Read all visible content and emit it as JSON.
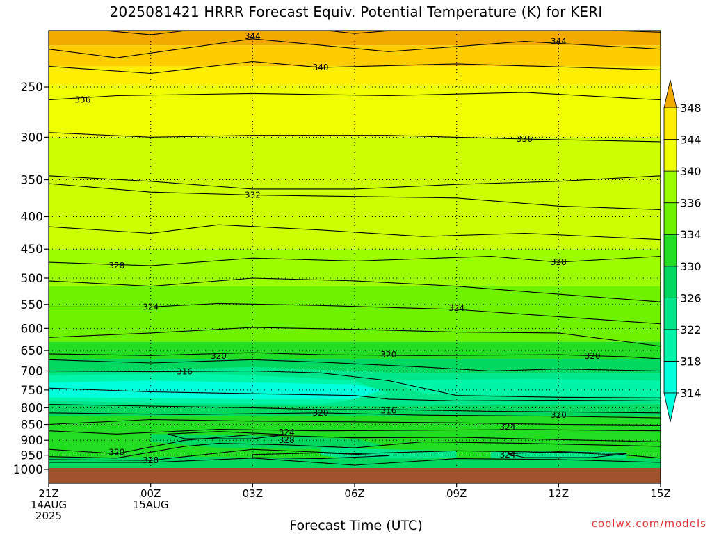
{
  "title": "2025081421 HRRR Forecast Equiv. Potential Temperature (K) for KERI",
  "credit": "coolwx.com/models",
  "colors": {
    "ground": "#a0522d",
    "band_colors": [
      "#00ffdd",
      "#00f5a8",
      "#00e68a",
      "#00d860",
      "#22dd22",
      "#6ef200",
      "#9cff00",
      "#ccff00",
      "#f0ff00",
      "#ffee00",
      "#ffcc00",
      "#f2aa00"
    ]
  },
  "chart_data": {
    "type": "contour",
    "title": "2025081421 HRRR Forecast Equiv. Potential Temperature (K) for KERI",
    "xlabel": "Forecast Time (UTC)",
    "ylabel": "",
    "y_scale": "log",
    "y_reversed": true,
    "y_ticks": [
      250,
      300,
      350,
      400,
      450,
      500,
      550,
      600,
      650,
      700,
      750,
      800,
      850,
      900,
      950,
      1000
    ],
    "x_ticks": [
      {
        "hours": 0,
        "lines": [
          "21Z",
          "14AUG",
          "2025"
        ]
      },
      {
        "hours": 3,
        "lines": [
          "00Z",
          "15AUG"
        ]
      },
      {
        "hours": 6,
        "lines": [
          "03Z"
        ]
      },
      {
        "hours": 9,
        "lines": [
          "06Z"
        ]
      },
      {
        "hours": 12,
        "lines": [
          "09Z"
        ]
      },
      {
        "hours": 15,
        "lines": [
          "12Z"
        ]
      },
      {
        "hours": 18,
        "lines": [
          "15Z"
        ]
      }
    ],
    "colorbar_ticks": [
      314,
      318,
      322,
      326,
      330,
      334,
      336,
      340,
      344,
      348
    ],
    "grid": true,
    "contour_labels": [
      {
        "value": "344",
        "hours": 6.0,
        "pressure": 208
      },
      {
        "value": "344",
        "hours": 15.0,
        "pressure": 212
      },
      {
        "value": "340",
        "hours": 8.0,
        "pressure": 233
      },
      {
        "value": "336",
        "hours": 1.0,
        "pressure": 262
      },
      {
        "value": "336",
        "hours": 14.0,
        "pressure": 302
      },
      {
        "value": "332",
        "hours": 6.0,
        "pressure": 370
      },
      {
        "value": "328",
        "hours": 2.0,
        "pressure": 478
      },
      {
        "value": "328",
        "hours": 15.0,
        "pressure": 472
      },
      {
        "value": "324",
        "hours": 3.0,
        "pressure": 555
      },
      {
        "value": "324",
        "hours": 12.0,
        "pressure": 557
      },
      {
        "value": "320",
        "hours": 5.0,
        "pressure": 663
      },
      {
        "value": "320",
        "hours": 10.0,
        "pressure": 660
      },
      {
        "value": "320",
        "hours": 16.0,
        "pressure": 663
      },
      {
        "value": "316",
        "hours": 4.0,
        "pressure": 702
      },
      {
        "value": "316",
        "hours": 10.0,
        "pressure": 808
      },
      {
        "value": "320",
        "hours": 8.0,
        "pressure": 815
      },
      {
        "value": "320",
        "hours": 15.0,
        "pressure": 822
      },
      {
        "value": "324",
        "hours": 7.0,
        "pressure": 875
      },
      {
        "value": "324",
        "hours": 13.5,
        "pressure": 857
      },
      {
        "value": "328",
        "hours": 7.0,
        "pressure": 900
      },
      {
        "value": "320",
        "hours": 2.0,
        "pressure": 940
      },
      {
        "value": "328",
        "hours": 3.0,
        "pressure": 968
      },
      {
        "value": "324",
        "hours": 13.5,
        "pressure": 948
      }
    ]
  }
}
